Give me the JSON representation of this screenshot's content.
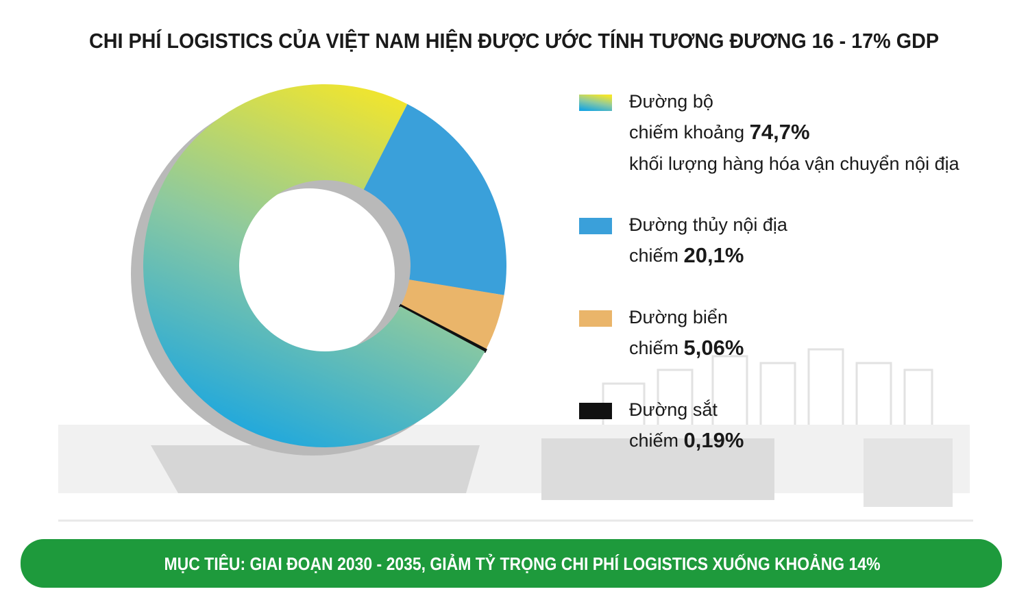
{
  "chart_data": {
    "type": "pie",
    "title": "CHI PHÍ LOGISTICS CỦA VIỆT NAM HIỆN ĐƯỢC ƯỚC TÍNH TƯƠNG ĐƯƠNG 16 - 17% GDP",
    "categories": [
      "Đường bộ",
      "Đường thủy nội địa",
      "Đường biển",
      "Đường sắt"
    ],
    "values": [
      74.7,
      20.1,
      5.06,
      0.19
    ],
    "value_labels": [
      "74,7%",
      "20,1%",
      "5,06%",
      "0,19%"
    ],
    "label_prefixes": [
      "chiếm khoảng",
      "chiếm",
      "chiếm",
      "chiếm"
    ],
    "annotations": [
      "khối lượng hàng hóa vận chuyển nội địa"
    ],
    "colors": [
      "#3ab3d6",
      "#3aa0da",
      "#eab56a",
      "#111111"
    ],
    "gradient": [
      "#f4e62a",
      "#8cc9a0",
      "#1aa6e0"
    ],
    "footer": "MỤC TIÊU: GIAI ĐOẠN 2030 - 2035, GIẢM TỶ TRỌNG CHI PHÍ LOGISTICS XUỐNG KHOẢNG 14%"
  }
}
